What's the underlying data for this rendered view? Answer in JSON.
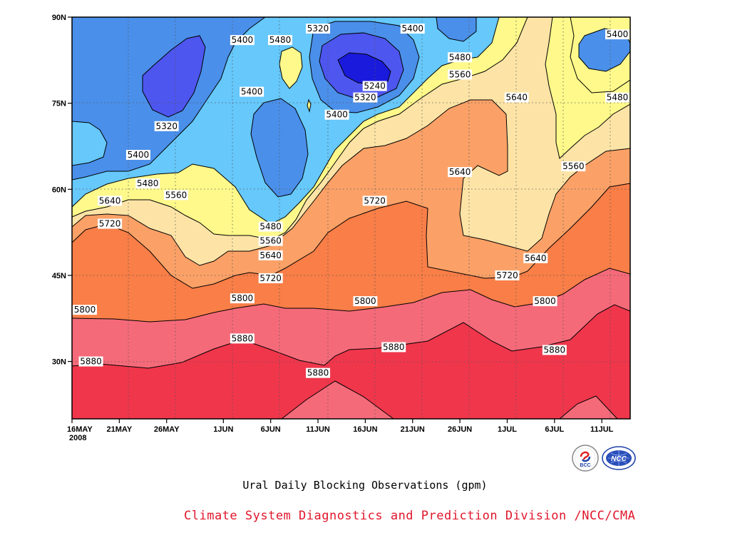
{
  "chart_data": {
    "type": "contour",
    "title": "Ural Daily Blocking Observations (gpm)",
    "x_tick_labels": [
      "16MAY",
      "21MAY",
      "26MAY",
      "1JUN",
      "6JUN",
      "11JUN",
      "16JUN",
      "21JUN",
      "26JUN",
      "1JUL",
      "6JUL",
      "11JUL"
    ],
    "x_year_label": "2008",
    "y_tick_labels": [
      "30N",
      "45N",
      "60N",
      "75N",
      "90N"
    ],
    "x_range": [
      "2008-05-16",
      "2008-07-14"
    ],
    "y_range": [
      20,
      90
    ],
    "grid": true,
    "levels": [
      5240,
      5320,
      5400,
      5480,
      5560,
      5640,
      5720,
      5800,
      5880
    ],
    "contour_labels": [
      {
        "value": "5320",
        "x": "2008-06-11",
        "y": 88
      },
      {
        "value": "5400",
        "x": "2008-06-21",
        "y": 88
      },
      {
        "value": "5400",
        "x": "2008-07-14",
        "y": 87
      },
      {
        "value": "5400",
        "x": "2008-06-03",
        "y": 86
      },
      {
        "value": "5480",
        "x": "2008-06-07",
        "y": 86
      },
      {
        "value": "5480",
        "x": "2008-06-26",
        "y": 83
      },
      {
        "value": "5560",
        "x": "2008-06-26",
        "y": 80
      },
      {
        "value": "5240",
        "x": "2008-06-17",
        "y": 78
      },
      {
        "value": "5400",
        "x": "2008-06-04",
        "y": 77
      },
      {
        "value": "5640",
        "x": "2008-07-02",
        "y": 76
      },
      {
        "value": "5480",
        "x": "2008-07-13",
        "y": 76
      },
      {
        "value": "5320",
        "x": "2008-06-16",
        "y": 76
      },
      {
        "value": "5400",
        "x": "2008-06-13",
        "y": 73
      },
      {
        "value": "5320",
        "x": "2008-05-26",
        "y": 71
      },
      {
        "value": "5400",
        "x": "2008-05-23",
        "y": 66
      },
      {
        "value": "5560",
        "x": "2008-07-08",
        "y": 64
      },
      {
        "value": "5640",
        "x": "2008-06-26",
        "y": 63
      },
      {
        "value": "5480",
        "x": "2008-05-24",
        "y": 61
      },
      {
        "value": "5560",
        "x": "2008-05-27",
        "y": 59
      },
      {
        "value": "5640",
        "x": "2008-05-20",
        "y": 58
      },
      {
        "value": "5720",
        "x": "2008-06-17",
        "y": 58
      },
      {
        "value": "5720",
        "x": "2008-05-20",
        "y": 54
      },
      {
        "value": "5480",
        "x": "2008-06-06",
        "y": 53.5
      },
      {
        "value": "5560",
        "x": "2008-06-06",
        "y": 51
      },
      {
        "value": "5640",
        "x": "2008-06-06",
        "y": 48.5
      },
      {
        "value": "5640",
        "x": "2008-07-04",
        "y": 48
      },
      {
        "value": "5720",
        "x": "2008-06-06",
        "y": 44.5
      },
      {
        "value": "5720",
        "x": "2008-07-01",
        "y": 45
      },
      {
        "value": "5800",
        "x": "2008-06-03",
        "y": 41
      },
      {
        "value": "5800",
        "x": "2008-06-16",
        "y": 40.5
      },
      {
        "value": "5800",
        "x": "2008-07-05",
        "y": 40.5
      },
      {
        "value": "5800",
        "x": "2008-05-17",
        "y": 39
      },
      {
        "value": "5880",
        "x": "2008-06-03",
        "y": 34
      },
      {
        "value": "5880",
        "x": "2008-06-19",
        "y": 32.5
      },
      {
        "value": "5880",
        "x": "2008-07-06",
        "y": 32
      },
      {
        "value": "5880",
        "x": "2008-05-18",
        "y": 30
      },
      {
        "value": "5880",
        "x": "2008-06-11",
        "y": 28
      }
    ]
  },
  "footer": {
    "caption": "Ural Daily Blocking Observations (gpm)",
    "credit": "Climate System Diagnostics and Prediction Division /NCC/CMA"
  },
  "logos": {
    "left": "BCC",
    "right": "NCC"
  },
  "colors": {
    "background": "#ffffff",
    "credit_text": "#e0162b",
    "band_5880_plus": "#f0364b",
    "band_5800_5880": "#f56a79",
    "band_5720_5800": "#f97e47",
    "band_5640_5720": "#fba167",
    "band_5560_5640": "#fde4a6",
    "band_5480_5560": "#fef98a",
    "band_5400_5480": "#66c8fb",
    "band_5320_5400": "#4a8fea",
    "band_5240_5320": "#4d56ee",
    "band_below_5240": "#1a1adc"
  }
}
